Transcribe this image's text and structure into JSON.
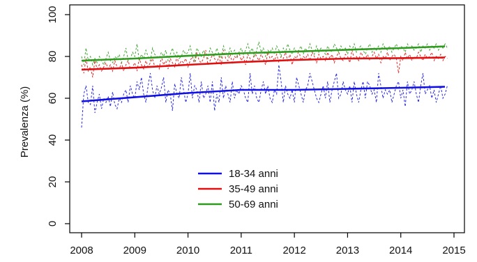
{
  "chart_data": {
    "type": "line",
    "title": "",
    "xlabel": "",
    "ylabel": "Prevalenza (%)",
    "xlim": [
      2008,
      2015
    ],
    "ylim": [
      0,
      100
    ],
    "x_ticks": [
      "2008",
      "2009",
      "2010",
      "2011",
      "2012",
      "2013",
      "2014",
      "2015"
    ],
    "y_ticks": [
      "0",
      "20",
      "40",
      "60",
      "80",
      "100"
    ],
    "grid": false,
    "legend_position": "bottom-center",
    "series": [
      {
        "name": "18-34 anni",
        "color": "#1010e0",
        "monthly": [
          46,
          62,
          66,
          58,
          57,
          66,
          53,
          58,
          62,
          55,
          60,
          58,
          61,
          56,
          63,
          57,
          55,
          60,
          58,
          62,
          64,
          58,
          66,
          62,
          60,
          68,
          64,
          70,
          62,
          58,
          66,
          72,
          64,
          60,
          66,
          62,
          65,
          70,
          58,
          64,
          62,
          54,
          67,
          62,
          60,
          70,
          64,
          58,
          62,
          72,
          60,
          66,
          64,
          58,
          68,
          60,
          62,
          66,
          58,
          68,
          54,
          62,
          58,
          70,
          60,
          66,
          62,
          58,
          68,
          60,
          64,
          62,
          66,
          64,
          60,
          58,
          72,
          62,
          66,
          60,
          58,
          64,
          68,
          62,
          66,
          60,
          58,
          64,
          62,
          76,
          68,
          58,
          66,
          62,
          60,
          64,
          58,
          70,
          66,
          62,
          58,
          64,
          66,
          72,
          68,
          64,
          60,
          58,
          62,
          66,
          60,
          68,
          58,
          64,
          68,
          72,
          60,
          62,
          68,
          64,
          62,
          66,
          58,
          68,
          62,
          58,
          64,
          68,
          60,
          68,
          66,
          62,
          64,
          58,
          72,
          66,
          60,
          64,
          62,
          64,
          58,
          62,
          66,
          68,
          60,
          64,
          56,
          68,
          62,
          64,
          68,
          62,
          58,
          66,
          72,
          62,
          64,
          66,
          60,
          64,
          58,
          62,
          66,
          60,
          62,
          66
        ],
        "trend": [
          [
            2008.0,
            58.5
          ],
          [
            2010.0,
            62.5
          ],
          [
            2011.0,
            64.0
          ],
          [
            2012.0,
            64.0
          ],
          [
            2013.0,
            64.5
          ],
          [
            2014.0,
            65.0
          ],
          [
            2014.83,
            65.5
          ]
        ]
      },
      {
        "name": "35-49 anni",
        "color": "#e01010",
        "monthly": [
          76,
          72,
          79,
          73,
          75,
          70,
          78,
          74,
          76,
          73,
          75,
          77,
          74,
          76,
          73,
          78,
          75,
          74,
          77,
          73,
          76,
          78,
          74,
          75,
          77,
          73,
          79,
          76,
          74,
          78,
          75,
          77,
          79,
          75,
          76,
          74,
          80,
          76,
          78,
          74,
          79,
          77,
          75,
          80,
          76,
          78,
          77,
          79,
          75,
          78,
          80,
          76,
          82,
          78,
          77,
          79,
          83,
          76,
          78,
          81,
          79,
          77,
          80,
          76,
          83,
          79,
          78,
          81,
          77,
          80,
          79,
          82,
          78,
          80,
          76,
          81,
          79,
          77,
          82,
          80,
          78,
          81,
          79,
          76,
          82,
          79,
          80,
          78,
          81,
          77,
          80,
          79,
          82,
          78,
          81,
          76,
          80,
          79,
          83,
          78,
          80,
          79,
          81,
          78,
          82,
          80,
          77,
          81,
          79,
          80,
          78,
          82,
          79,
          81,
          77,
          80,
          82,
          79,
          78,
          81,
          80,
          77,
          83,
          79,
          80,
          78,
          82,
          80,
          79,
          81,
          78,
          80,
          82,
          79,
          81,
          77,
          80,
          79,
          82,
          78,
          80,
          81,
          79,
          72,
          80,
          78,
          82,
          79,
          81,
          78,
          80,
          79,
          82,
          80,
          78,
          81,
          79,
          80,
          82,
          78,
          80,
          79,
          81,
          78,
          80,
          79
        ],
        "trend": [
          [
            2008.0,
            73.7
          ],
          [
            2009.0,
            74.6
          ],
          [
            2010.0,
            76.0
          ],
          [
            2011.0,
            77.3
          ],
          [
            2012.0,
            78.3
          ],
          [
            2013.0,
            79.0
          ],
          [
            2014.0,
            79.2
          ],
          [
            2014.83,
            79.5
          ]
        ]
      },
      {
        "name": "50-69 anni",
        "color": "#2e9a1e",
        "monthly": [
          80,
          76,
          84,
          78,
          80,
          76,
          79,
          77,
          80,
          78,
          76,
          79,
          82,
          78,
          77,
          80,
          79,
          81,
          77,
          80,
          84,
          78,
          79,
          82,
          80,
          86,
          78,
          81,
          79,
          83,
          80,
          78,
          84,
          81,
          80,
          79,
          82,
          80,
          83,
          78,
          81,
          84,
          80,
          82,
          79,
          80,
          83,
          81,
          82,
          85,
          80,
          78,
          84,
          82,
          80,
          83,
          81,
          79,
          84,
          82,
          80,
          84,
          81,
          79,
          85,
          82,
          80,
          84,
          81,
          83,
          80,
          82,
          84,
          81,
          83,
          86,
          82,
          84,
          80,
          83,
          87,
          82,
          84,
          80,
          83,
          82,
          84,
          81,
          85,
          83,
          80,
          84,
          82,
          86,
          83,
          81,
          84,
          82,
          83,
          85,
          81,
          84,
          82,
          86,
          83,
          81,
          85,
          82,
          84,
          83,
          81,
          85,
          83,
          82,
          86,
          84,
          82,
          85,
          83,
          84,
          81,
          85,
          83,
          86,
          82,
          84,
          85,
          83,
          81,
          84,
          86,
          82,
          84,
          83,
          85,
          82,
          86,
          84,
          83,
          85,
          82,
          84,
          86,
          83,
          85,
          84,
          82,
          86,
          84,
          85,
          83,
          84,
          86,
          82,
          85,
          84,
          86,
          83,
          85,
          84,
          86,
          83,
          85,
          84,
          86,
          84
        ],
        "trend": [
          [
            2008.0,
            78.0
          ],
          [
            2009.0,
            79.0
          ],
          [
            2010.0,
            80.3
          ],
          [
            2011.0,
            81.5
          ],
          [
            2012.0,
            82.3
          ],
          [
            2013.0,
            83.2
          ],
          [
            2014.0,
            84.0
          ],
          [
            2014.83,
            84.8
          ]
        ]
      }
    ]
  }
}
